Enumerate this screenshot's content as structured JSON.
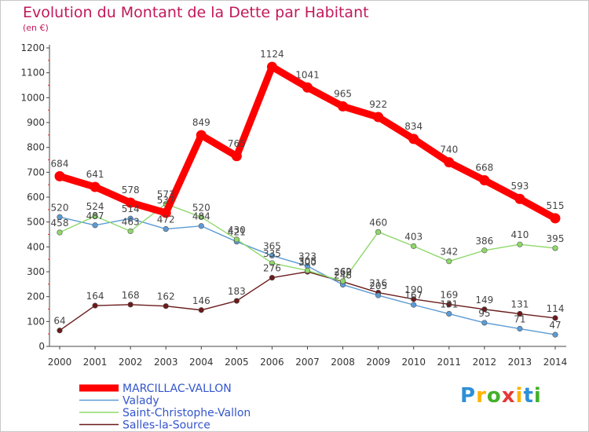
{
  "chart_data": {
    "type": "line",
    "title": "Evolution du Montant de la Dette par Habitant",
    "subtitle": "(en €)",
    "xlabel": "",
    "ylabel": "",
    "ylim": [
      0,
      1200
    ],
    "yticks": [
      0,
      100,
      200,
      300,
      400,
      500,
      600,
      700,
      800,
      900,
      1000,
      1100,
      1200
    ],
    "categories": [
      "2000",
      "2001",
      "2002",
      "2003",
      "2004",
      "2005",
      "2006",
      "2007",
      "2008",
      "2009",
      "2010",
      "2011",
      "2012",
      "2013",
      "2014"
    ],
    "series": [
      {
        "name": "MARCILLAC-VALLON",
        "color": "#ff0000",
        "values": [
          684,
          641,
          578,
          537,
          849,
          765,
          1124,
          1041,
          965,
          922,
          834,
          740,
          668,
          593,
          515
        ]
      },
      {
        "name": "Valady",
        "color": "#5b9bd5",
        "values": [
          520,
          487,
          514,
          472,
          484,
          421,
          365,
          323,
          248,
          205,
          167,
          131,
          95,
          71,
          47
        ]
      },
      {
        "name": "Saint-Christophe-Vallon",
        "color": "#8ed86a",
        "values": [
          458,
          524,
          463,
          573,
          520,
          430,
          335,
          305,
          262,
          460,
          403,
          342,
          386,
          410,
          395
        ]
      },
      {
        "name": "Salles-la-Source",
        "color": "#6b1a1a",
        "values": [
          64,
          164,
          168,
          162,
          146,
          183,
          276,
          300,
          260,
          216,
          190,
          169,
          149,
          131,
          114
        ]
      }
    ],
    "legend_position": "bottom-left",
    "grid": false
  },
  "branding": {
    "letters": [
      "P",
      "r",
      "o",
      "x",
      "i",
      "t",
      "i"
    ],
    "colors": [
      "#2e8fd8",
      "#ffb300",
      "#43b02a",
      "#e53935",
      "#ffb300",
      "#2e8fd8",
      "#43b02a"
    ]
  }
}
